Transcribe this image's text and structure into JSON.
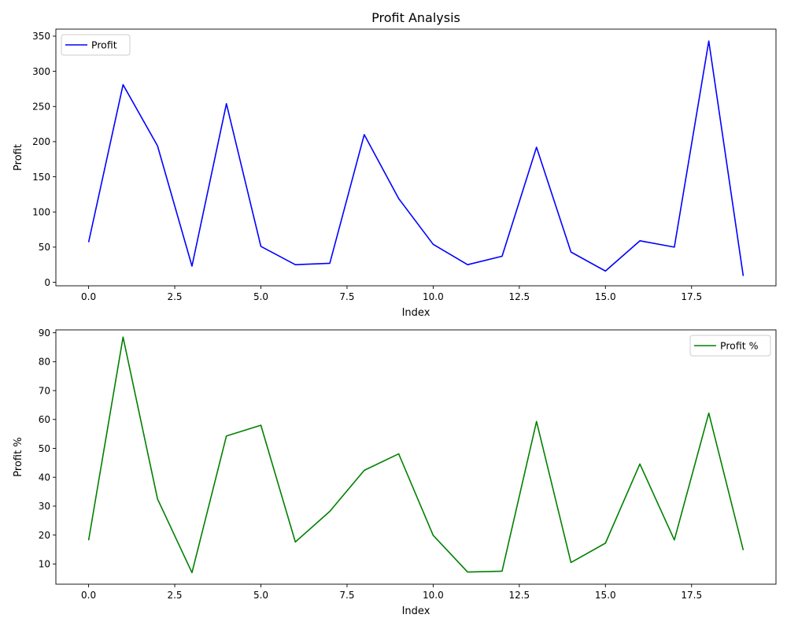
{
  "chart_data": [
    {
      "type": "line",
      "title": "Profit Analysis",
      "xlabel": "Index",
      "ylabel": "Profit",
      "xlim": [
        -0.95,
        19.95
      ],
      "ylim": [
        -5,
        360
      ],
      "xticks": [
        0.0,
        2.5,
        5.0,
        7.5,
        10.0,
        12.5,
        15.0,
        17.5
      ],
      "xtick_labels": [
        "0.0",
        "2.5",
        "5.0",
        "7.5",
        "10.0",
        "12.5",
        "15.0",
        "17.5"
      ],
      "yticks": [
        0,
        50,
        100,
        150,
        200,
        250,
        300,
        350
      ],
      "ytick_labels": [
        "0",
        "50",
        "100",
        "150",
        "200",
        "250",
        "300",
        "350"
      ],
      "grid": false,
      "legend_position": "top-left",
      "series": [
        {
          "name": "Profit",
          "color": "#0000ff",
          "x": [
            0,
            1,
            2,
            3,
            4,
            5,
            6,
            7,
            8,
            9,
            10,
            11,
            12,
            13,
            14,
            15,
            16,
            17,
            18,
            19
          ],
          "y": [
            57,
            281,
            194,
            23,
            254,
            51,
            25,
            27,
            210,
            119,
            54,
            25,
            37,
            192,
            43,
            16,
            59,
            50,
            343,
            9
          ]
        }
      ]
    },
    {
      "type": "line",
      "title": "",
      "xlabel": "Index",
      "ylabel": "Profit %",
      "xlim": [
        -0.95,
        19.95
      ],
      "ylim": [
        3,
        91
      ],
      "xticks": [
        0.0,
        2.5,
        5.0,
        7.5,
        10.0,
        12.5,
        15.0,
        17.5
      ],
      "xtick_labels": [
        "0.0",
        "2.5",
        "5.0",
        "7.5",
        "10.0",
        "12.5",
        "15.0",
        "17.5"
      ],
      "yticks": [
        10,
        20,
        30,
        40,
        50,
        60,
        70,
        80,
        90
      ],
      "ytick_labels": [
        "10",
        "20",
        "30",
        "40",
        "50",
        "60",
        "70",
        "80",
        "90"
      ],
      "grid": false,
      "legend_position": "top-right",
      "series": [
        {
          "name": "Profit %",
          "color": "#008000",
          "x": [
            0,
            1,
            2,
            3,
            4,
            5,
            6,
            7,
            8,
            9,
            10,
            11,
            12,
            13,
            14,
            15,
            16,
            17,
            18,
            19
          ],
          "y": [
            18.2,
            88.5,
            32.5,
            7.0,
            54.3,
            58.0,
            17.6,
            28.2,
            42.4,
            48.1,
            19.9,
            7.2,
            7.5,
            59.3,
            10.5,
            17.2,
            44.6,
            18.3,
            62.2,
            14.8
          ]
        }
      ]
    }
  ]
}
